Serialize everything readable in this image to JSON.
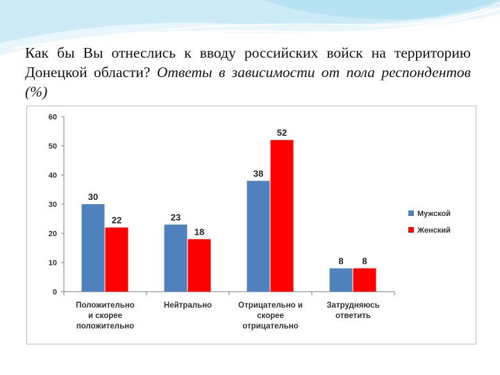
{
  "slide": {
    "title_main": "Как бы Вы отнеслись к вводу российских войск на территорию Донецкой области?",
    "title_sub": "Ответы в зависимости от пола респондентов (%)"
  },
  "colors": {
    "male": "#4f81bd",
    "female": "#ff0000",
    "axis": "#7f7f7f",
    "text": "#333333",
    "frame": "#bfbfbf",
    "wave_light": "#d6eefa",
    "wave_mid": "#9fd6ef"
  },
  "chart_data": {
    "type": "bar",
    "title": "",
    "xlabel": "",
    "ylabel": "",
    "ylim": [
      0,
      60
    ],
    "yticks": [
      0,
      10,
      20,
      30,
      40,
      50,
      60
    ],
    "grid": false,
    "legend_position": "right",
    "categories": [
      [
        "Положительно",
        "и скорее",
        "положительно"
      ],
      [
        "Нейтрально"
      ],
      [
        "Отрицательно и",
        "скорее",
        "отрицательно"
      ],
      [
        "Затрудняюсь",
        "ответить"
      ]
    ],
    "series": [
      {
        "name": "Мужской",
        "values": [
          30,
          23,
          38,
          8
        ],
        "labels": [
          "30",
          "23",
          "38",
          "8"
        ]
      },
      {
        "name": "Женский",
        "values": [
          22,
          18,
          52,
          8
        ],
        "labels": [
          "22",
          "18",
          "52",
          "8"
        ]
      }
    ]
  }
}
